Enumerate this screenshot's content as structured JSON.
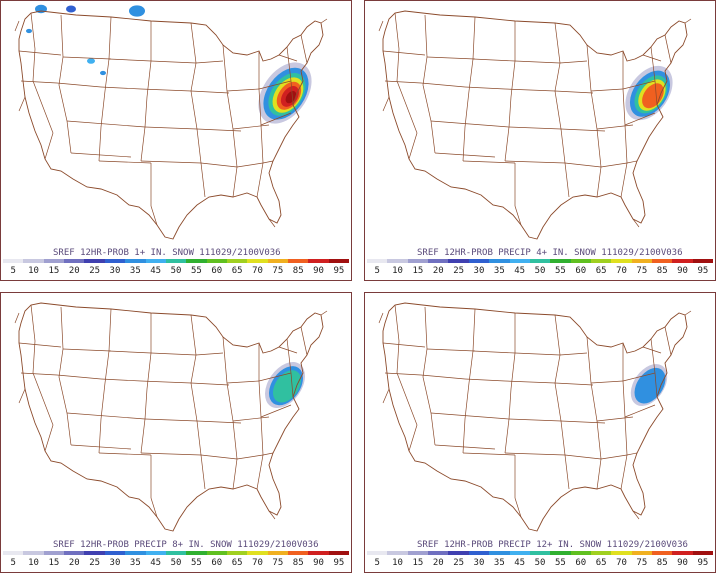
{
  "panels": [
    {
      "title": "SREF 12HR-PROB 1+ IN. SNOW 111029/2100V036",
      "field": 1.0
    },
    {
      "title": "SREF 12HR-PROB PRECIP 4+ IN. SNOW 111029/2100V036",
      "field": 0.75
    },
    {
      "title": "SREF 12HR-PROB PRECIP 8+ IN. SNOW 111029/2100V036",
      "field": 0.45
    },
    {
      "title": "SREF 12HR-PROB PRECIP 12+ IN. SNOW 111029/2100V036",
      "field": 0.3
    }
  ],
  "legend": {
    "ticks": [
      "5",
      "10",
      "15",
      "20",
      "25",
      "30",
      "35",
      "45",
      "50",
      "55",
      "60",
      "65",
      "70",
      "75",
      "85",
      "90",
      "95"
    ],
    "colors": [
      "#e8e8f0",
      "#c8c8e0",
      "#a0a0d0",
      "#7070c0",
      "#4040b0",
      "#3060d0",
      "#3090e0",
      "#40b0f0",
      "#30c0a0",
      "#30b030",
      "#60c020",
      "#a0d020",
      "#e0e020",
      "#f0b020",
      "#f06020",
      "#d02020",
      "#a01010"
    ]
  },
  "colors": {
    "border": "#7a3b3b",
    "map_lines": "#8b4a2b"
  }
}
